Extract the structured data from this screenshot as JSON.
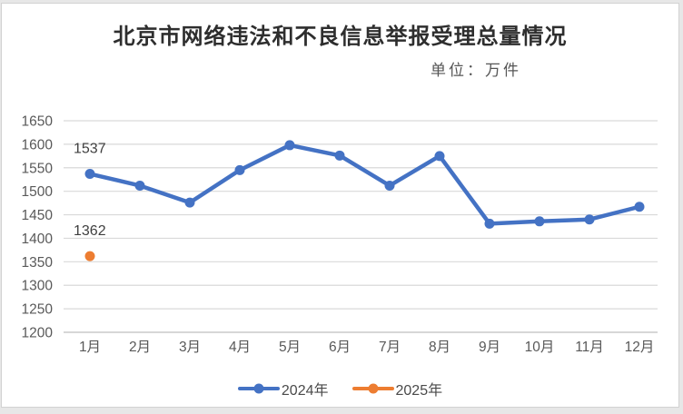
{
  "header": {
    "title": "北京市网络违法和不良信息举报受理总量情况",
    "unit_label": "单位：万件"
  },
  "chart_data": {
    "type": "line",
    "title": "北京市网络违法和不良信息举报受理总量情况",
    "unit": "单位：万件",
    "categories": [
      "1月",
      "2月",
      "3月",
      "4月",
      "5月",
      "6月",
      "7月",
      "8月",
      "9月",
      "10月",
      "11月",
      "12月"
    ],
    "series": [
      {
        "name": "2024年",
        "color": "#4472C4",
        "values": [
          1537,
          1512,
          1476,
          1545,
          1598,
          1576,
          1512,
          1575,
          1431,
          1436,
          1440,
          1467
        ]
      },
      {
        "name": "2025年",
        "color": "#ED7D31",
        "values": [
          1362
        ]
      }
    ],
    "labeled_points": [
      {
        "series": 0,
        "index": 0,
        "text": "1537"
      },
      {
        "series": 1,
        "index": 0,
        "text": "1362"
      }
    ],
    "ylim": [
      1200,
      1650
    ],
    "ytick_step": 50,
    "yticks": [
      1200,
      1250,
      1300,
      1350,
      1400,
      1450,
      1500,
      1550,
      1600,
      1650
    ],
    "grid": true,
    "legend_position": "bottom",
    "colors": {
      "gridline": "#d9d9d9",
      "axis_line": "#bfbfbf",
      "axis_text": "#595959"
    }
  }
}
